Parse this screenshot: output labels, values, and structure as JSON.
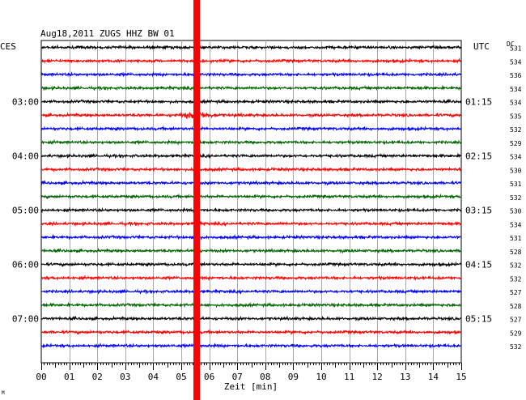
{
  "chart_data": {
    "type": "line",
    "title": "Aug18,2011   ZUGS HHZ BW 01",
    "left_label": "CES",
    "right_label": "UTC",
    "dc_label": "DC",
    "xlabel": "Zeit [min]",
    "xlim": [
      0,
      15
    ],
    "x_ticks": [
      "00",
      "01",
      "02",
      "03",
      "04",
      "05",
      "06",
      "07",
      "08",
      "09",
      "10",
      "11",
      "12",
      "13",
      "14",
      "15"
    ],
    "trace_colors": [
      "#000000",
      "#ff0000",
      "#0000ff",
      "#006400"
    ],
    "marker_color": "#ff0000",
    "marker_minute": 5.55,
    "event": {
      "trace": 5,
      "minute": 5.5
    },
    "left_times": [
      {
        "trace": 4,
        "label": "03:00"
      },
      {
        "trace": 8,
        "label": "04:00"
      },
      {
        "trace": 12,
        "label": "05:00"
      },
      {
        "trace": 16,
        "label": "06:00"
      },
      {
        "trace": 20,
        "label": "07:00"
      }
    ],
    "right_times": [
      {
        "trace": 4,
        "label": "01:15"
      },
      {
        "trace": 8,
        "label": "02:15"
      },
      {
        "trace": 12,
        "label": "03:15"
      },
      {
        "trace": 16,
        "label": "04:15"
      },
      {
        "trace": 20,
        "label": "05:15"
      }
    ],
    "dc_values": [
      "531",
      "534",
      "536",
      "534",
      "534",
      "535",
      "532",
      "529",
      "534",
      "530",
      "531",
      "532",
      "530",
      "534",
      "531",
      "528",
      "532",
      "532",
      "527",
      "528",
      "527",
      "529",
      "532"
    ],
    "corner_mark": "M"
  }
}
